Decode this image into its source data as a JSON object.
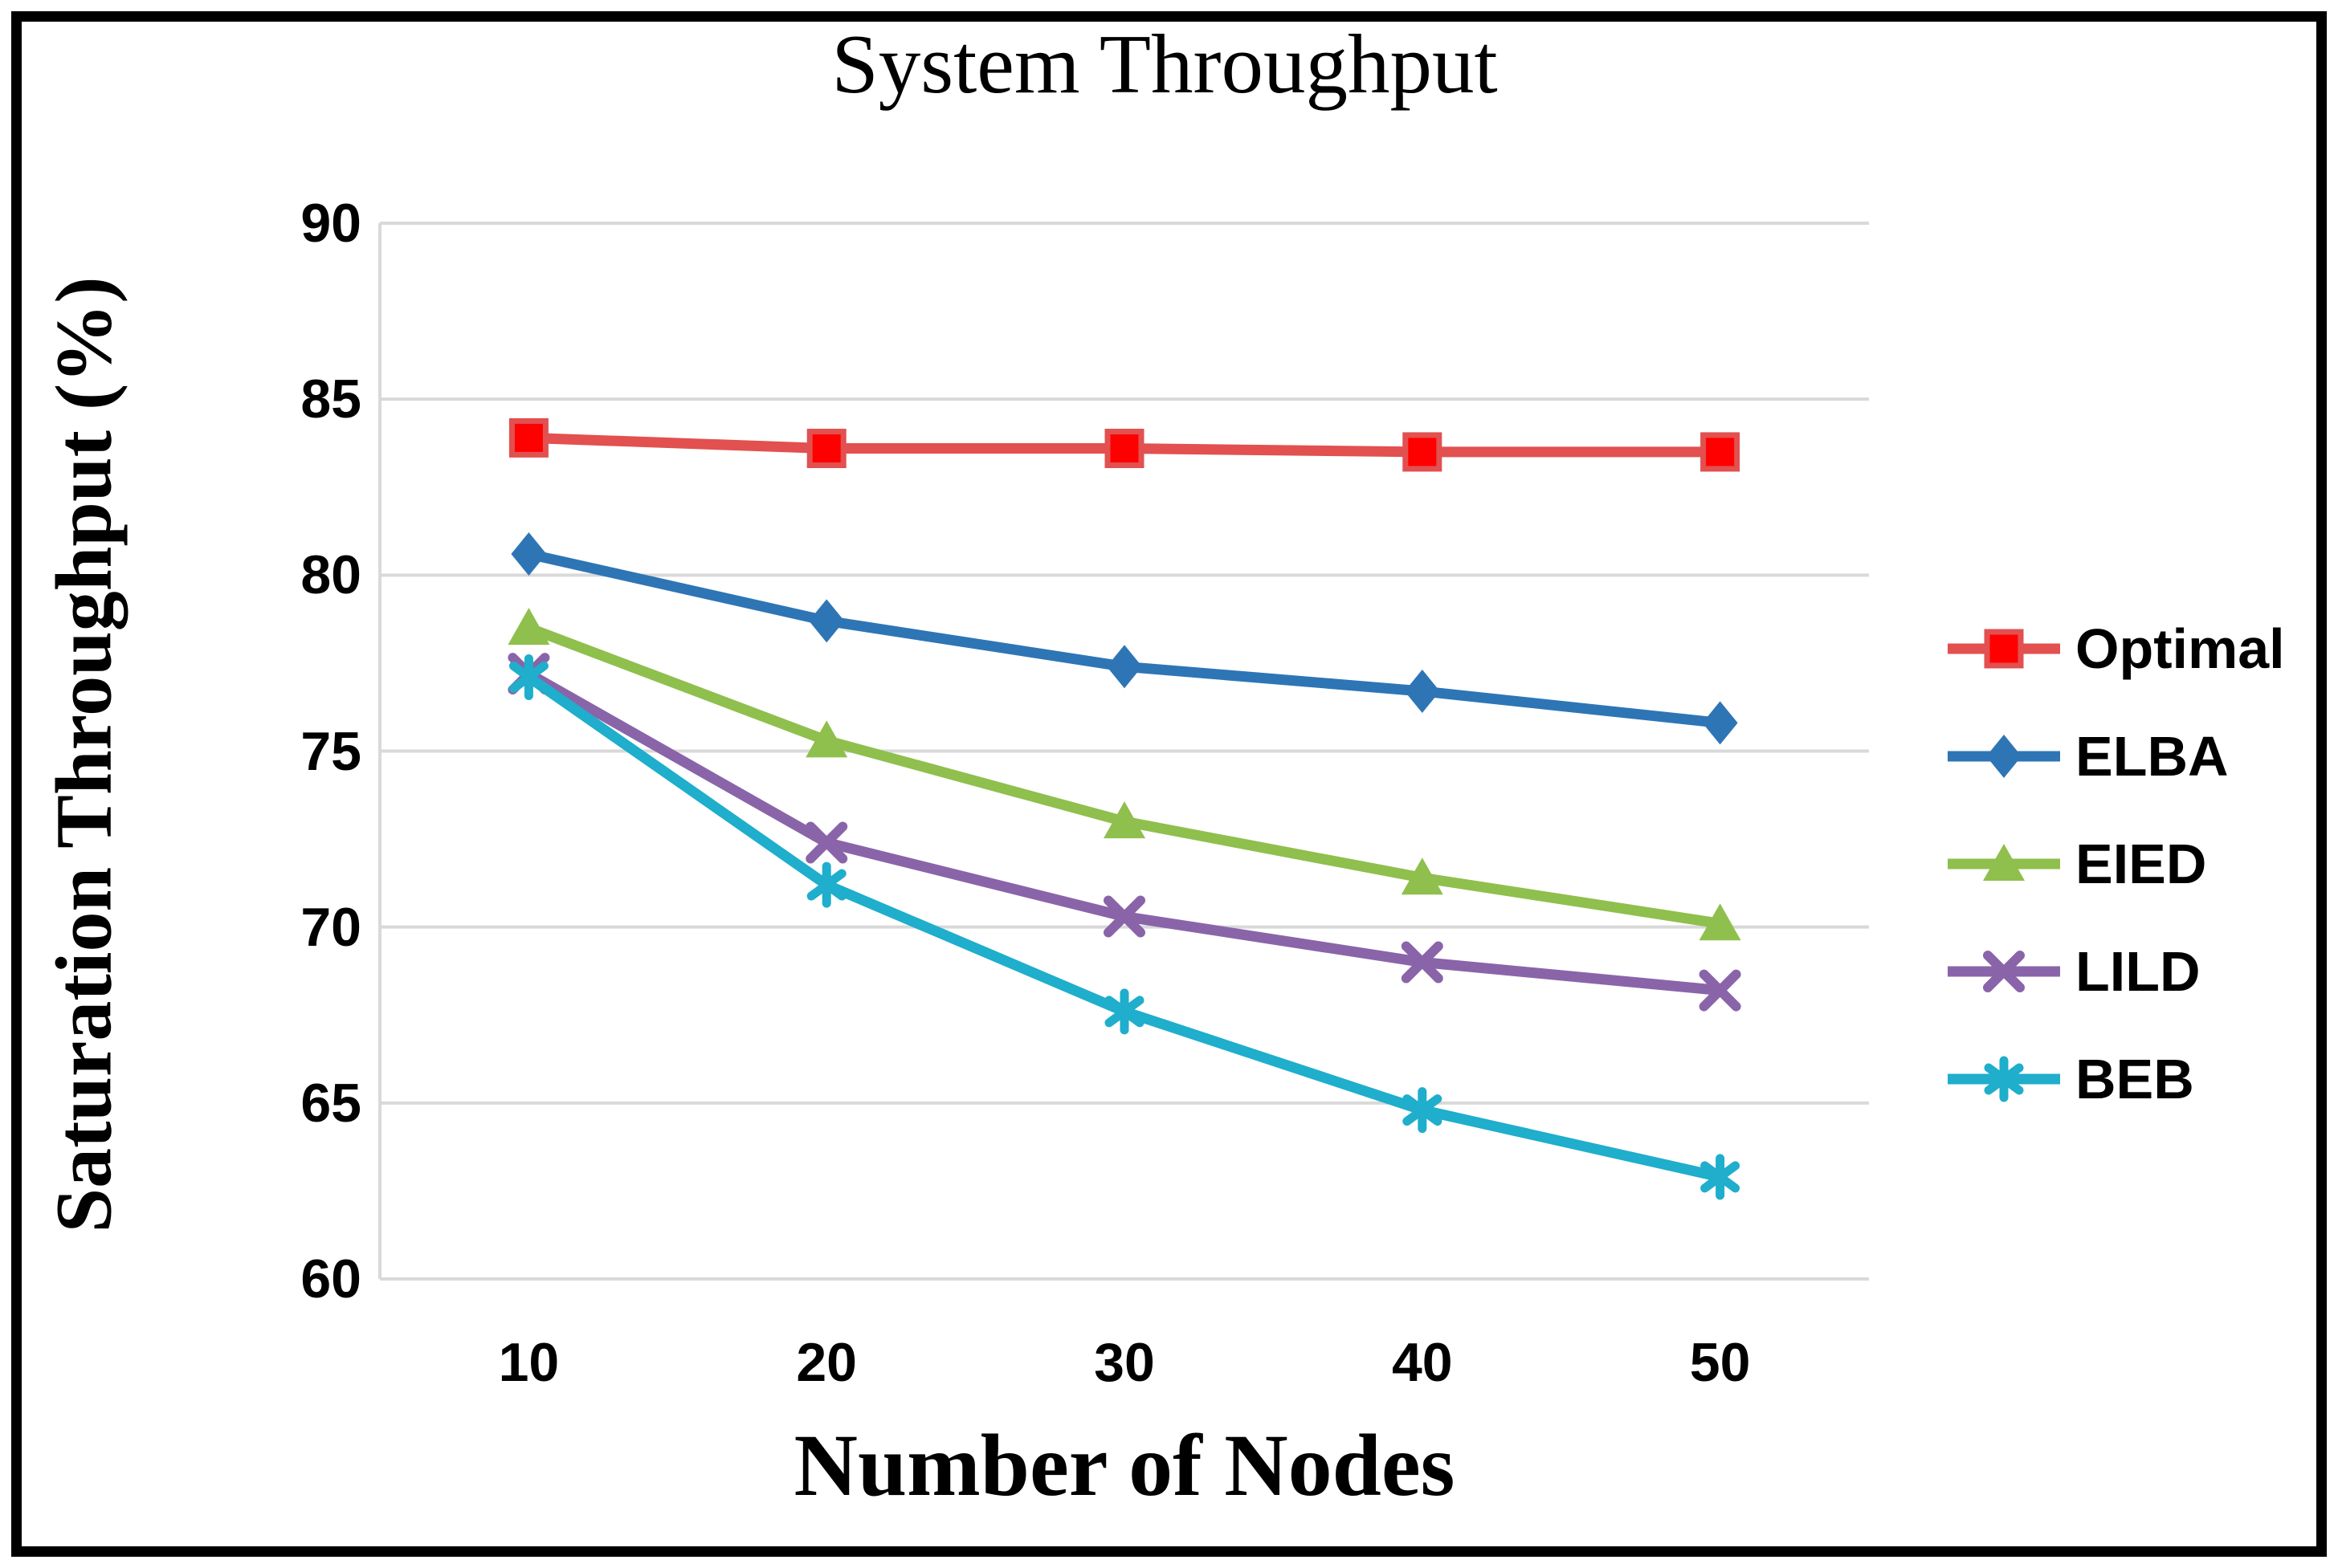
{
  "title": "System Throughput",
  "colors": {
    "grid": "#D9D9D9",
    "axis_line": "#D9D9D9",
    "frame_border": "#000000",
    "text": "#000000",
    "background": "#FFFFFF"
  },
  "chart_data": {
    "type": "line",
    "title": "System Throughput",
    "xlabel": "Number of Nodes",
    "ylabel": "Saturation Throughput (%)",
    "categories": [
      10,
      20,
      30,
      40,
      50
    ],
    "y_ticks": [
      90,
      85,
      80,
      75,
      70,
      65,
      60
    ],
    "ylim": [
      60,
      90
    ],
    "grid": true,
    "legend_position": "right",
    "series": [
      {
        "name": "Optimal",
        "marker": "square",
        "color": "#E25050",
        "marker_fill": "#FF0000",
        "values": [
          83.9,
          83.6,
          83.6,
          83.5,
          83.5
        ]
      },
      {
        "name": "ELBA",
        "marker": "diamond",
        "color": "#2E75B5",
        "marker_fill": "#2E75B5",
        "values": [
          80.6,
          78.7,
          77.4,
          76.7,
          75.8
        ]
      },
      {
        "name": "EIED",
        "marker": "triangle",
        "color": "#8FBF4D",
        "marker_fill": "#8FBF4D",
        "values": [
          78.5,
          75.3,
          73.0,
          71.4,
          70.1
        ]
      },
      {
        "name": "LILD",
        "marker": "x",
        "color": "#8A64A9",
        "marker_fill": "#8A64A9",
        "values": [
          77.2,
          72.4,
          70.3,
          69.0,
          68.2
        ]
      },
      {
        "name": "BEB",
        "marker": "asterisk",
        "color": "#1FAECB",
        "marker_fill": "#1FAECB",
        "values": [
          77.1,
          71.2,
          67.6,
          64.8,
          62.9
        ]
      }
    ]
  }
}
